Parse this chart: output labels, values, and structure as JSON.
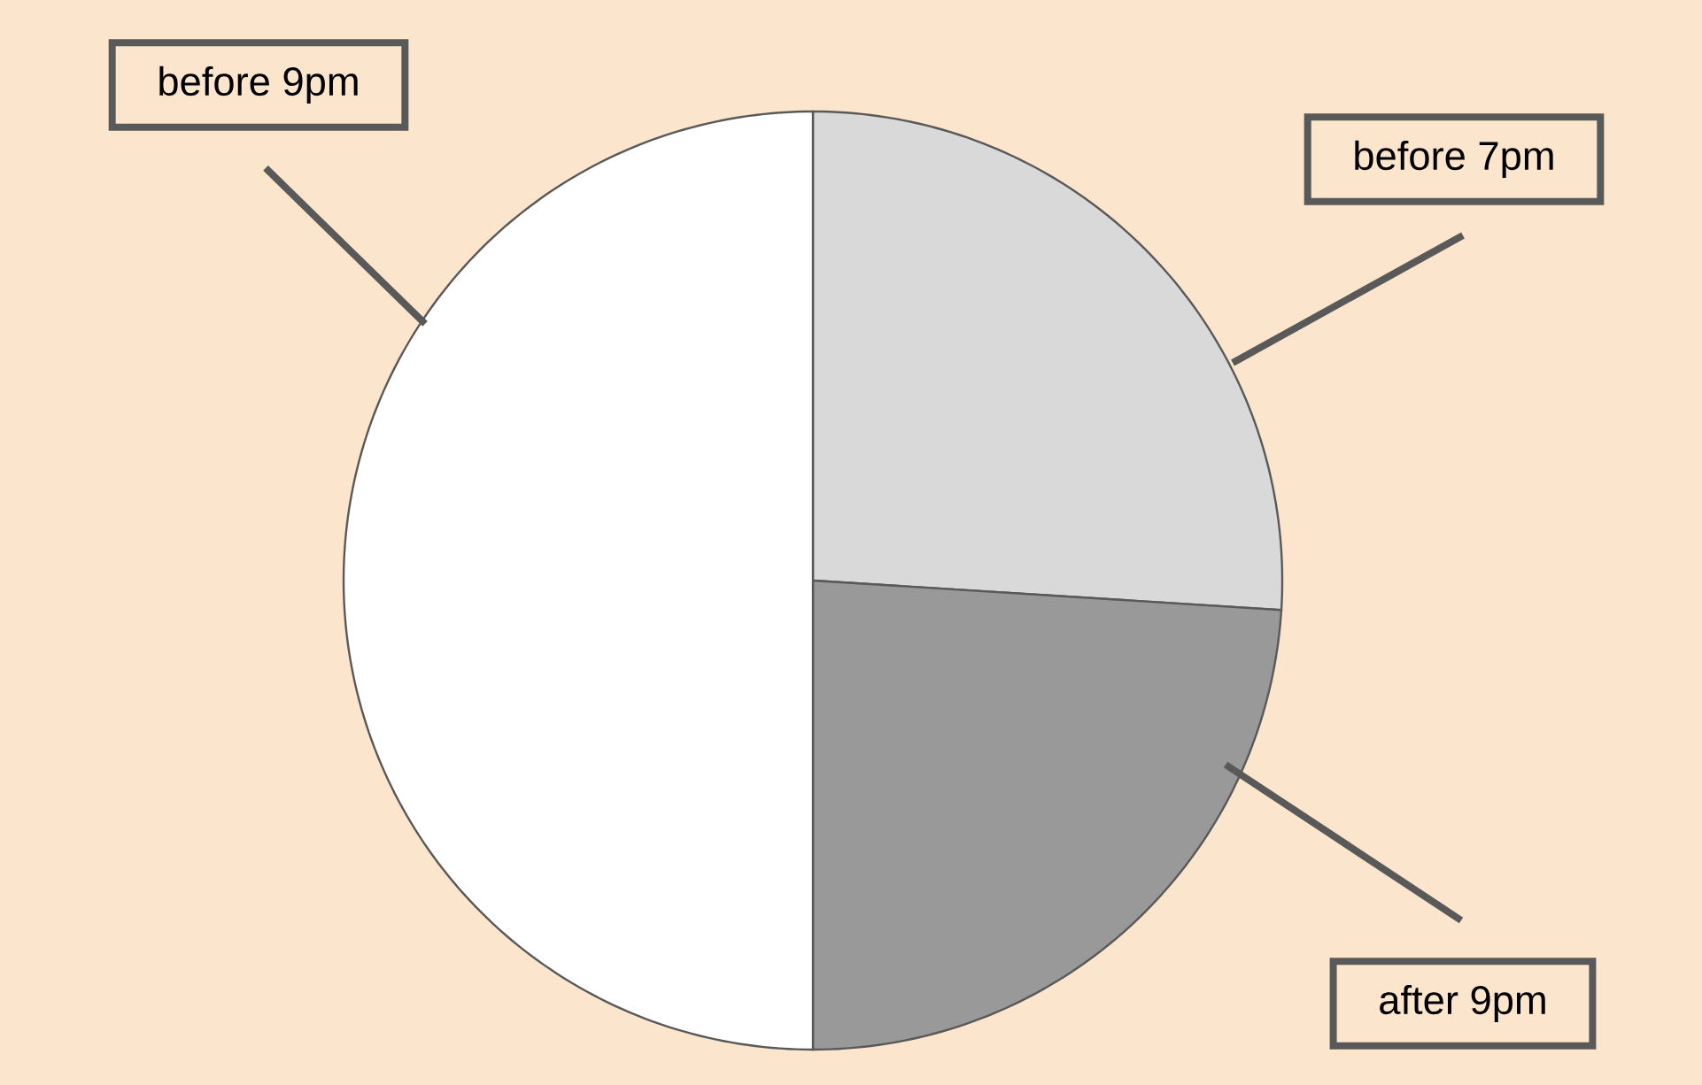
{
  "chart_data": {
    "type": "pie",
    "categories": [
      "before 7pm",
      "after 9pm",
      "before 9pm"
    ],
    "values": [
      26,
      24,
      50
    ],
    "colors": [
      "#d9d9d9",
      "#999999",
      "#ffffff"
    ]
  }
}
